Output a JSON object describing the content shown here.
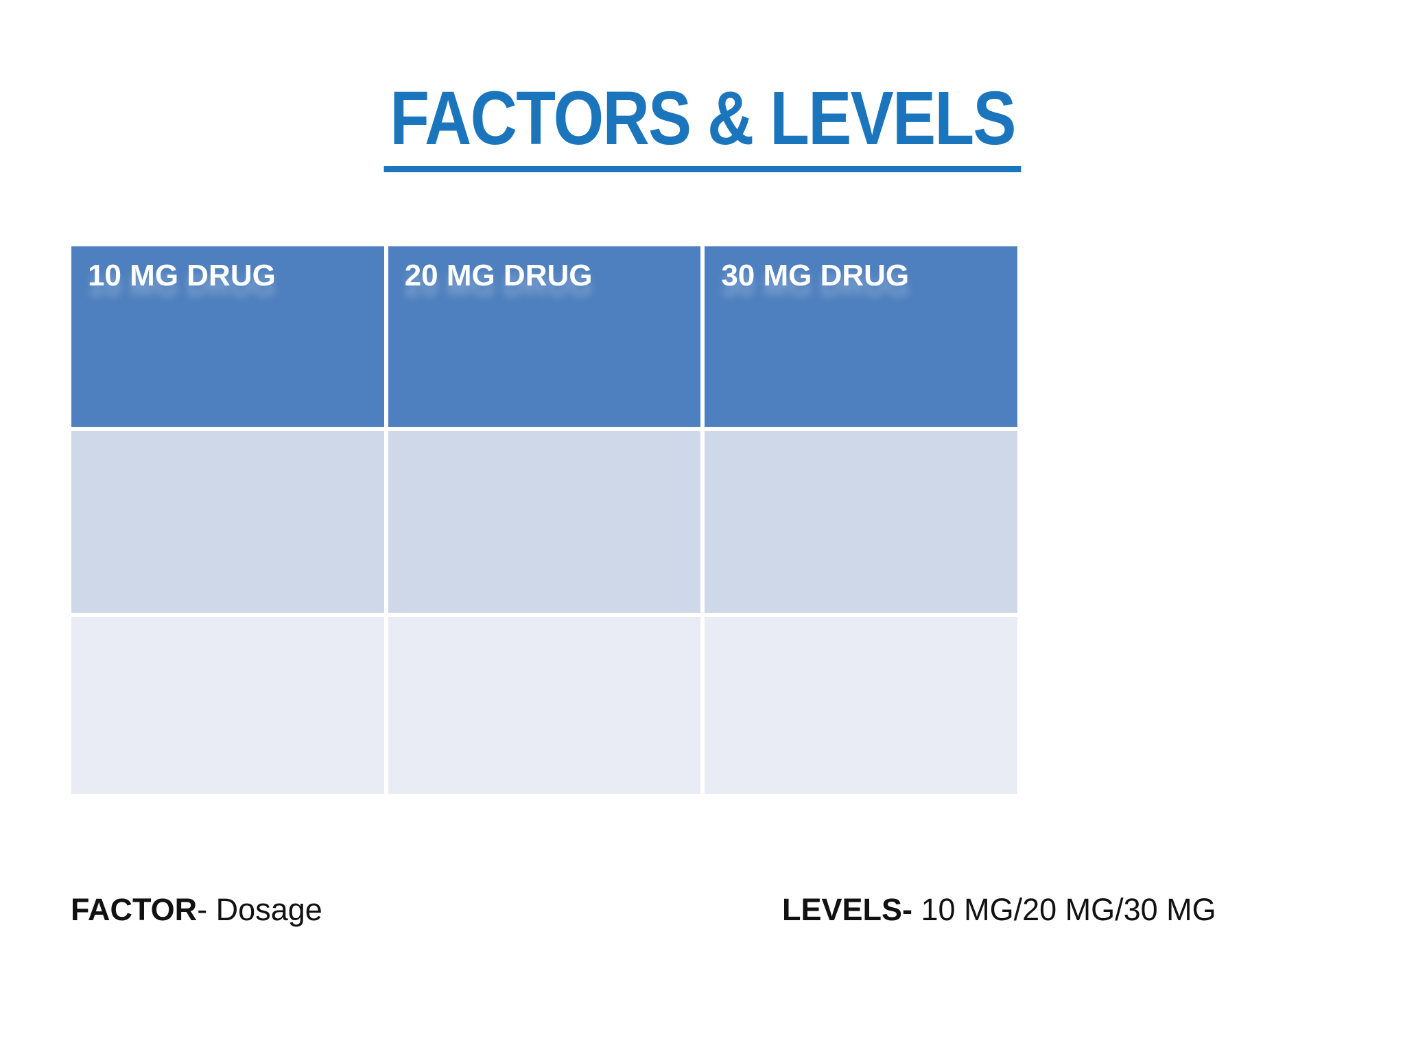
{
  "slide": {
    "title": "FACTORS & LEVELS",
    "table": {
      "headers": [
        "10 MG DRUG",
        "20 MG DRUG",
        "30 MG DRUG"
      ],
      "rows": [
        [
          "",
          "",
          ""
        ],
        [
          "",
          "",
          ""
        ]
      ]
    },
    "footer": {
      "factor_label": "FACTOR",
      "factor_rest": "- Dosage",
      "levels_label": "LEVELS-",
      "levels_rest": " 10 MG/20 MG/30 MG"
    },
    "colors": {
      "title_blue": "#1B75BC",
      "header_bg": "#4E7FBE",
      "row_odd_bg": "#CFD8E9",
      "row_even_bg": "#E9ECF4",
      "header_text": "#FFFFFF",
      "footer_text": "#111111"
    }
  }
}
